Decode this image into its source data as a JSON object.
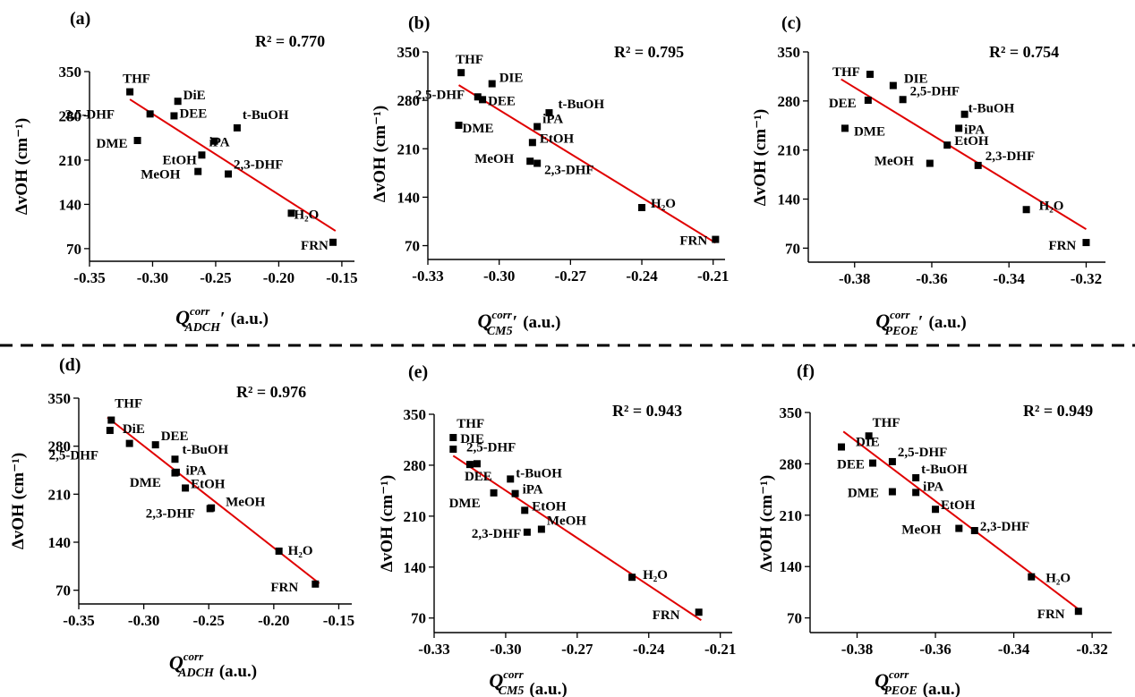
{
  "divider_color": "#000000",
  "fit_color": "#e00000",
  "marker_color": "#000000",
  "chart_data": [
    {
      "type": "scatter",
      "panel": "(a)",
      "r2": "R² = 0.770",
      "ylabel": "ΔvOH (cm⁻¹)",
      "xlabel_q": "Q",
      "xlabel_sup": "corr",
      "xlabel_sub": "ADCH",
      "xlabel_prime": "′",
      "xlabel_unit": "(a.u.)",
      "xlim": [
        -0.35,
        -0.14
      ],
      "ylim": [
        50,
        350
      ],
      "xticks": [
        -0.35,
        -0.3,
        -0.25,
        -0.2,
        -0.15
      ],
      "xtick_labels": [
        "-0.35",
        "-0.30",
        "-0.25",
        "-0.20",
        "-0.15"
      ],
      "yticks": [
        70,
        140,
        210,
        280,
        350
      ],
      "ytick_labels": [
        "70",
        "140",
        "210",
        "280",
        "350"
      ],
      "fit": [
        [
          -0.318,
          306
        ],
        [
          -0.155,
          98
        ]
      ],
      "points": [
        {
          "label": "THF",
          "x": -0.318,
          "y": 318
        },
        {
          "label": "DiE",
          "x": -0.28,
          "y": 303
        },
        {
          "label": "2,5-DHF",
          "x": -0.302,
          "y": 283
        },
        {
          "label": "DEE",
          "x": -0.283,
          "y": 280
        },
        {
          "label": "t-BuOH",
          "x": -0.233,
          "y": 261
        },
        {
          "label": "DME",
          "x": -0.312,
          "y": 241
        },
        {
          "label": "iPA",
          "x": -0.251,
          "y": 240
        },
        {
          "label": "EtOH",
          "x": -0.261,
          "y": 218
        },
        {
          "label": "MeOH",
          "x": -0.264,
          "y": 192
        },
        {
          "label": "2,3-DHF",
          "x": -0.24,
          "y": 188
        },
        {
          "label": "H₂O",
          "x": -0.19,
          "y": 126
        },
        {
          "label": "FRN",
          "x": -0.157,
          "y": 80
        }
      ]
    },
    {
      "type": "scatter",
      "panel": "(b)",
      "r2": "R² = 0.795",
      "ylabel": "ΔvOH (cm⁻¹)",
      "xlabel_q": "Q",
      "xlabel_sup": "corr",
      "xlabel_sub": "CM5",
      "xlabel_prime": "′",
      "xlabel_unit": "(a.u.)",
      "xlim": [
        -0.33,
        -0.205
      ],
      "ylim": [
        50,
        350
      ],
      "xticks": [
        -0.33,
        -0.3,
        -0.27,
        -0.24,
        -0.21
      ],
      "xtick_labels": [
        "-0.33",
        "-0.30",
        "-0.27",
        "-0.24",
        "-0.21"
      ],
      "yticks": [
        70,
        140,
        210,
        280,
        350
      ],
      "yticks_labels_note": "",
      "ytick_labels": [
        "70",
        "140",
        "210",
        "280",
        "350"
      ],
      "fit": [
        [
          -0.317,
          302
        ],
        [
          -0.209,
          74
        ]
      ],
      "points": [
        {
          "label": "THF",
          "x": -0.316,
          "y": 320
        },
        {
          "label": "DIE",
          "x": -0.303,
          "y": 304
        },
        {
          "label": "2,5-DHF",
          "x": -0.309,
          "y": 285
        },
        {
          "label": "DEE",
          "x": -0.307,
          "y": 281
        },
        {
          "label": "t-BuOH",
          "x": -0.279,
          "y": 262
        },
        {
          "label": "DME",
          "x": -0.317,
          "y": 244
        },
        {
          "label": "iPA",
          "x": -0.284,
          "y": 242
        },
        {
          "label": "EtOH",
          "x": -0.286,
          "y": 219
        },
        {
          "label": "MeOH",
          "x": -0.287,
          "y": 192
        },
        {
          "label": "2,3-DHF",
          "x": -0.284,
          "y": 189
        },
        {
          "label": "H₂O",
          "x": -0.24,
          "y": 125
        },
        {
          "label": "FRN",
          "x": -0.209,
          "y": 79
        }
      ]
    },
    {
      "type": "scatter",
      "panel": "(c)",
      "r2": "R² = 0.754",
      "ylabel": "ΔvOH (cm⁻¹)",
      "xlabel_q": "Q",
      "xlabel_sup": "corr",
      "xlabel_sub": "PEOE",
      "xlabel_prime": "′",
      "xlabel_unit": "(a.u.)",
      "xlim": [
        -0.392,
        -0.315
      ],
      "ylim": [
        50,
        350
      ],
      "xticks": [
        -0.38,
        -0.36,
        -0.34,
        -0.32
      ],
      "xtick_labels": [
        "-0.38",
        "-0.36",
        "-0.34",
        "-0.32"
      ],
      "yticks": [
        70,
        140,
        210,
        280,
        350
      ],
      "ytick_labels": [
        "70",
        "140",
        "210",
        "280",
        "350"
      ],
      "fit": [
        [
          -0.3835,
          311
        ],
        [
          -0.32,
          97
        ]
      ],
      "points": [
        {
          "label": "THF",
          "x": -0.376,
          "y": 318
        },
        {
          "label": "DIE",
          "x": -0.37,
          "y": 302
        },
        {
          "label": "DEE",
          "x": -0.3765,
          "y": 281
        },
        {
          "label": "2,5-DHF",
          "x": -0.3675,
          "y": 282
        },
        {
          "label": "t-BuOH",
          "x": -0.3515,
          "y": 261
        },
        {
          "label": "DME",
          "x": -0.3825,
          "y": 241
        },
        {
          "label": "iPA",
          "x": -0.353,
          "y": 241
        },
        {
          "label": "EtOH",
          "x": -0.356,
          "y": 217
        },
        {
          "label": "MeOH",
          "x": -0.3605,
          "y": 191
        },
        {
          "label": "2,3-DHF",
          "x": -0.348,
          "y": 188
        },
        {
          "label": "H₂O",
          "x": -0.3355,
          "y": 125
        },
        {
          "label": "FRN",
          "x": -0.32,
          "y": 78
        }
      ]
    },
    {
      "type": "scatter",
      "panel": "(d)",
      "r2": "R² = 0.976",
      "ylabel": "ΔvOH (cm⁻¹)",
      "xlabel_q": "Q",
      "xlabel_sup": "corr",
      "xlabel_sub": "ADCH",
      "xlabel_prime": "",
      "xlabel_unit": "(a.u.)",
      "xlim": [
        -0.35,
        -0.14
      ],
      "ylim": [
        50,
        350
      ],
      "xticks": [
        -0.35,
        -0.3,
        -0.25,
        -0.2,
        -0.15
      ],
      "xtick_labels": [
        "-0.35",
        "-0.30",
        "-0.25",
        "-0.20",
        "-0.15"
      ],
      "yticks": [
        70,
        140,
        210,
        280,
        350
      ],
      "ytick_labels": [
        "70",
        "140",
        "210",
        "280",
        "350"
      ],
      "fit": [
        [
          -0.328,
          322
        ],
        [
          -0.165,
          80
        ]
      ],
      "points": [
        {
          "label": "THF",
          "x": -0.325,
          "y": 318
        },
        {
          "label": "DiE",
          "x": -0.326,
          "y": 303
        },
        {
          "label": "DEE",
          "x": -0.291,
          "y": 282
        },
        {
          "label": "2,5-DHF",
          "x": -0.311,
          "y": 284
        },
        {
          "label": "t-BuOH",
          "x": -0.276,
          "y": 261
        },
        {
          "label": "iPA",
          "x": -0.276,
          "y": 241
        },
        {
          "label": "DME",
          "x": -0.275,
          "y": 242
        },
        {
          "label": "EtOH",
          "x": -0.268,
          "y": 219
        },
        {
          "label": "MeOH",
          "x": -0.248,
          "y": 190
        },
        {
          "label": "2,3-DHF",
          "x": -0.249,
          "y": 189
        },
        {
          "label": "H₂O",
          "x": -0.196,
          "y": 127
        },
        {
          "label": "FRN",
          "x": -0.168,
          "y": 79
        }
      ]
    },
    {
      "type": "scatter",
      "panel": "(e)",
      "r2": "R² = 0.943",
      "ylabel": "ΔvOH (cm⁻¹)",
      "xlabel_q": "Q",
      "xlabel_sup": "corr",
      "xlabel_sub": "CM5",
      "xlabel_prime": "",
      "xlabel_unit": "(a.u.)",
      "xlim": [
        -0.33,
        -0.205
      ],
      "ylim": [
        50,
        350
      ],
      "xticks": [
        -0.33,
        -0.3,
        -0.27,
        -0.24,
        -0.21
      ],
      "xtick_labels": [
        "-0.33",
        "-0.30",
        "-0.27",
        "-0.24",
        "-0.21"
      ],
      "yticks": [
        70,
        140,
        210,
        280,
        350
      ],
      "ytick_labels": [
        "70",
        "140",
        "210",
        "280",
        "350"
      ],
      "fit": [
        [
          -0.322,
          293
        ],
        [
          -0.218,
          67
        ]
      ],
      "points": [
        {
          "label": "THF",
          "x": -0.322,
          "y": 318
        },
        {
          "label": "DIE",
          "x": -0.322,
          "y": 302
        },
        {
          "label": "2,5-DHF",
          "x": -0.312,
          "y": 282
        },
        {
          "label": "DEE",
          "x": -0.315,
          "y": 281
        },
        {
          "label": "t-BuOH",
          "x": -0.298,
          "y": 261
        },
        {
          "label": "iPA",
          "x": -0.296,
          "y": 241
        },
        {
          "label": "DME",
          "x": -0.305,
          "y": 242
        },
        {
          "label": "EtOH",
          "x": -0.292,
          "y": 218
        },
        {
          "label": "MeOH",
          "x": -0.285,
          "y": 192
        },
        {
          "label": "2,3-DHF",
          "x": -0.291,
          "y": 188
        },
        {
          "label": "H₂O",
          "x": -0.247,
          "y": 126
        },
        {
          "label": "FRN",
          "x": -0.219,
          "y": 78
        }
      ]
    },
    {
      "type": "scatter",
      "panel": "(f)",
      "r2": "R² = 0.949",
      "ylabel": "ΔvOH (cm⁻¹)",
      "xlabel_q": "Q",
      "xlabel_sup": "corr",
      "xlabel_sub": "PEOE",
      "xlabel_prime": "",
      "xlabel_unit": "(a.u.)",
      "xlim": [
        -0.392,
        -0.315
      ],
      "ylim": [
        50,
        350
      ],
      "xticks": [
        -0.38,
        -0.36,
        -0.34,
        -0.32
      ],
      "xtick_labels": [
        "-0.38",
        "-0.36",
        "-0.34",
        "-0.32"
      ],
      "yticks": [
        70,
        140,
        210,
        280,
        350
      ],
      "ytick_labels": [
        "70",
        "140",
        "210",
        "280",
        "350"
      ],
      "fit": [
        [
          -0.3835,
          324
        ],
        [
          -0.323,
          80
        ]
      ],
      "points": [
        {
          "label": "THF",
          "x": -0.377,
          "y": 318
        },
        {
          "label": "DIE",
          "x": -0.384,
          "y": 303
        },
        {
          "label": "2,5-DHF",
          "x": -0.371,
          "y": 283
        },
        {
          "label": "DEE",
          "x": -0.376,
          "y": 281
        },
        {
          "label": "t-BuOH",
          "x": -0.365,
          "y": 261
        },
        {
          "label": "iPA",
          "x": -0.365,
          "y": 241
        },
        {
          "label": "DME",
          "x": -0.371,
          "y": 242
        },
        {
          "label": "EtOH",
          "x": -0.36,
          "y": 218
        },
        {
          "label": "MeOH",
          "x": -0.354,
          "y": 192
        },
        {
          "label": "2,3-DHF",
          "x": -0.35,
          "y": 189
        },
        {
          "label": "H₂O",
          "x": -0.3355,
          "y": 126
        },
        {
          "label": "FRN",
          "x": -0.3235,
          "y": 79
        }
      ]
    }
  ]
}
